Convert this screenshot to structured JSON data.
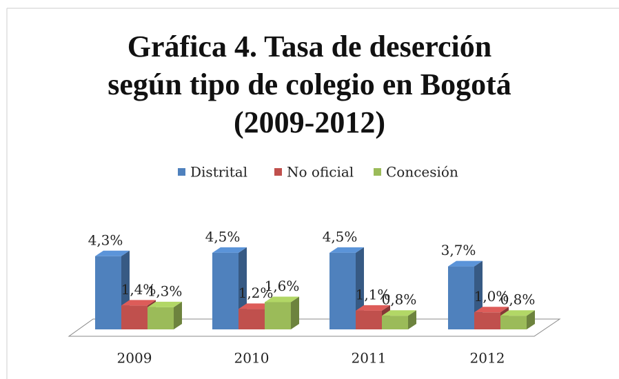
{
  "chart_data": {
    "type": "bar3d",
    "title": "Gráfica 4. Tasa de deserción\nsegún tipo de colegio en Bogotá\n(2009-2012)",
    "categories": [
      "2009",
      "2010",
      "2011",
      "2012"
    ],
    "series": [
      {
        "name": "Distrital",
        "color": "#4f81bd",
        "values": [
          4.3,
          4.5,
          4.5,
          3.7
        ],
        "value_labels": [
          "4,3%",
          "4,5%",
          "4,5%",
          "3,7%"
        ]
      },
      {
        "name": "No oficial",
        "color": "#c0504d",
        "values": [
          1.4,
          1.2,
          1.1,
          1.0
        ],
        "value_labels": [
          "1,4%",
          "1,2%",
          "1,1%",
          "1,0%"
        ]
      },
      {
        "name": "Concesión",
        "color": "#9bbb59",
        "values": [
          1.3,
          1.6,
          0.8,
          0.8
        ],
        "value_labels": [
          "1,3%",
          "1,6%",
          "0,8%",
          "0,8%"
        ]
      }
    ],
    "legend": "top"
  }
}
